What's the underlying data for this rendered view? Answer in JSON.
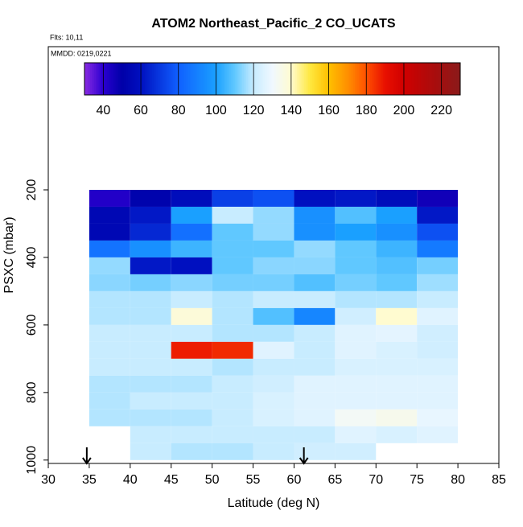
{
  "chart_data": {
    "type": "heatmap",
    "title": "ATOM2 Northeast_Pacific_2 CO_UCATS",
    "annotations": [
      "Flts: 10,11",
      "MMDD: 0219,0221"
    ],
    "xlabel": "Latitude (deg N)",
    "ylabel": "PSXC (mbar)",
    "xlim": [
      30,
      85
    ],
    "xticks": [
      30,
      35,
      40,
      45,
      50,
      55,
      60,
      65,
      70,
      75,
      80,
      85
    ],
    "ylim": [
      1010,
      -224
    ],
    "yticks": [
      200,
      400,
      600,
      800,
      1000
    ],
    "x": [
      37.5,
      42.5,
      47.5,
      52.5,
      57.5,
      62.5,
      67.5,
      72.5,
      77.5
    ],
    "y": [
      225,
      275,
      325,
      375,
      425,
      475,
      525,
      575,
      625,
      675,
      725,
      775,
      825,
      875,
      925,
      975
    ],
    "z": [
      [
        42,
        52,
        58,
        72,
        76,
        60,
        62,
        58,
        46
      ],
      [
        55,
        62,
        100,
        120,
        115,
        95,
        108,
        100,
        62
      ],
      [
        55,
        66,
        85,
        110,
        115,
        95,
        100,
        95,
        76
      ],
      [
        86,
        95,
        105,
        110,
        110,
        115,
        110,
        105,
        88
      ],
      [
        115,
        62,
        60,
        110,
        114,
        114,
        110,
        108,
        112
      ],
      [
        114,
        112,
        114,
        112,
        112,
        108,
        112,
        110,
        116
      ],
      [
        118,
        118,
        120,
        118,
        120,
        120,
        118,
        118,
        120
      ],
      [
        118,
        118,
        138,
        118,
        108,
        92,
        122,
        140,
        126
      ],
      [
        120,
        120,
        120,
        118,
        118,
        120,
        126,
        127,
        122
      ],
      [
        120,
        120,
        188,
        186,
        126,
        120,
        126,
        124,
        122
      ],
      [
        120,
        120,
        120,
        118,
        120,
        120,
        124,
        124,
        124
      ],
      [
        118,
        118,
        118,
        120,
        122,
        126,
        126,
        126,
        126
      ],
      [
        118,
        120,
        120,
        120,
        124,
        126,
        126,
        126,
        126
      ],
      [
        118,
        118,
        118,
        120,
        124,
        126,
        132,
        134,
        128
      ],
      [
        null,
        120,
        120,
        120,
        120,
        120,
        126,
        124,
        126
      ],
      [
        null,
        120,
        118,
        118,
        120,
        122,
        122,
        null,
        null
      ]
    ],
    "colorbar": {
      "range": [
        30,
        230
      ],
      "ticks": [
        40,
        60,
        80,
        100,
        120,
        140,
        160,
        180,
        200,
        220
      ],
      "stops": [
        [
          30,
          "#8a2be2"
        ],
        [
          40,
          "#2a00d0"
        ],
        [
          50,
          "#0000a8"
        ],
        [
          60,
          "#0010c0"
        ],
        [
          80,
          "#1060ff"
        ],
        [
          100,
          "#1aa0ff"
        ],
        [
          110,
          "#60c8ff"
        ],
        [
          120,
          "#c8ecff"
        ],
        [
          130,
          "#f0f8ff"
        ],
        [
          140,
          "#fffbd0"
        ],
        [
          150,
          "#ffe840"
        ],
        [
          160,
          "#ffc000"
        ],
        [
          170,
          "#ff9000"
        ],
        [
          180,
          "#ff5000"
        ],
        [
          190,
          "#e81000"
        ],
        [
          200,
          "#d00000"
        ],
        [
          220,
          "#a01010"
        ],
        [
          230,
          "#8b1a1a"
        ]
      ]
    },
    "markers_x": [
      34.7,
      61.2
    ]
  }
}
